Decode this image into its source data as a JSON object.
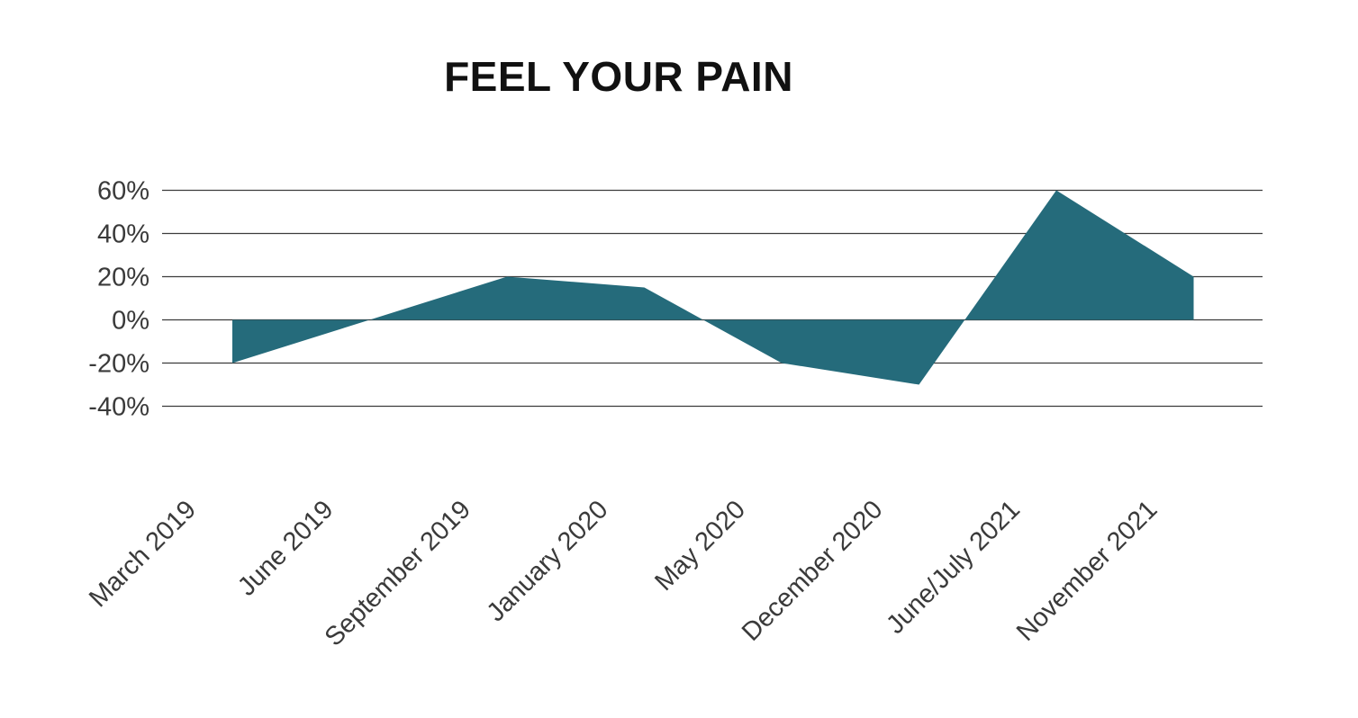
{
  "chart_data": {
    "type": "area",
    "title": "FEEL YOUR PAIN",
    "categories": [
      "March 2019",
      "June 2019",
      "September 2019",
      "January 2020",
      "May 2020",
      "December 2020",
      "June/July 2021",
      "November 2021"
    ],
    "values": [
      -20,
      0,
      20,
      15,
      -20,
      -30,
      60,
      20
    ],
    "unit": "%",
    "y_ticks": [
      60,
      40,
      20,
      0,
      -20,
      -40
    ],
    "ylim": [
      -40,
      60
    ],
    "baseline": 0,
    "grid": true,
    "legend": false,
    "xlabel": "",
    "ylabel": "",
    "colors": {
      "area": "#256b7b",
      "grid": "#3c3c3c",
      "tick_text": "#3a3a3a",
      "title_text": "#111111"
    }
  }
}
